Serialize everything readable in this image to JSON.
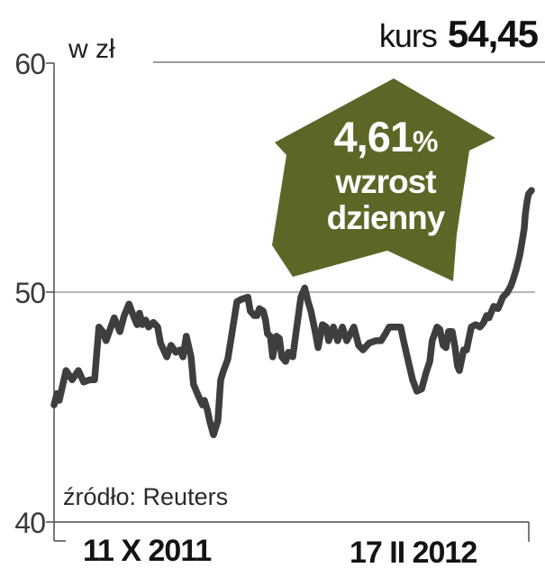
{
  "header": {
    "kurs_label": "kurs",
    "price": "54,45"
  },
  "y_axis": {
    "unit_label": "w zł",
    "ticks": [
      "60",
      "50",
      "40"
    ]
  },
  "x_axis": {
    "label_start": "11 X 2011",
    "label_end": "17 II 2012"
  },
  "source_note": "źródło: Reuters",
  "badge": {
    "percent": "4,61",
    "percent_sign": "%",
    "word1": "wzrost",
    "word2": "dzienny"
  },
  "colors": {
    "arrow": "#5e6627",
    "price_line": "#3e3e40",
    "grid": "#7a7a7a",
    "axis": "#4d4d4d",
    "background": "#ffffff"
  },
  "chart_data": {
    "type": "line",
    "title": "kurs 54,45",
    "ylabel": "w zł",
    "ylim": [
      40,
      60
    ],
    "y_ticks": [
      40,
      50,
      60
    ],
    "x_range_labels": [
      "11 X 2011",
      "17 II 2012"
    ],
    "annotation": "4,61% wzrost dzienny",
    "last_price": 54.45,
    "grid": "horizontal-only",
    "points": [
      [
        0,
        45.1
      ],
      [
        0.6,
        45.6
      ],
      [
        1.1,
        45.3
      ],
      [
        2.5,
        46.6
      ],
      [
        3.8,
        46.2
      ],
      [
        5.1,
        46.6
      ],
      [
        6.2,
        46.1
      ],
      [
        7.5,
        46.2
      ],
      [
        8.5,
        46.2
      ],
      [
        9.4,
        48.5
      ],
      [
        10.2,
        48.3
      ],
      [
        10.9,
        47.9
      ],
      [
        11.9,
        48.5
      ],
      [
        12.6,
        48.9
      ],
      [
        13.8,
        48.3
      ],
      [
        14.7,
        49.0
      ],
      [
        15.7,
        49.5
      ],
      [
        16.6,
        49.0
      ],
      [
        17.4,
        48.6
      ],
      [
        17.9,
        49.1
      ],
      [
        18.5,
        48.6
      ],
      [
        19.2,
        48.8
      ],
      [
        19.8,
        48.5
      ],
      [
        20.8,
        48.7
      ],
      [
        21.7,
        48.5
      ],
      [
        22.3,
        47.8
      ],
      [
        23.6,
        47.2
      ],
      [
        24.5,
        47.7
      ],
      [
        25.5,
        47.4
      ],
      [
        26.4,
        47.5
      ],
      [
        27.0,
        47.2
      ],
      [
        27.7,
        48.1
      ],
      [
        28.7,
        47.2
      ],
      [
        29.2,
        46.0
      ],
      [
        30.2,
        45.5
      ],
      [
        31.1,
        45.1
      ],
      [
        31.5,
        45.3
      ],
      [
        32.1,
        44.9
      ],
      [
        32.6,
        44.4
      ],
      [
        33.4,
        43.8
      ],
      [
        34.3,
        44.4
      ],
      [
        34.9,
        46.2
      ],
      [
        35.5,
        46.6
      ],
      [
        36.4,
        47.1
      ],
      [
        37.4,
        48.4
      ],
      [
        38.3,
        49.6
      ],
      [
        39.2,
        49.7
      ],
      [
        40.6,
        49.8
      ],
      [
        41.1,
        49.2
      ],
      [
        41.9,
        49.0
      ],
      [
        42.5,
        49.0
      ],
      [
        43.0,
        49.3
      ],
      [
        43.8,
        49.2
      ],
      [
        44.3,
        48.8
      ],
      [
        44.7,
        48.2
      ],
      [
        45.3,
        48.1
      ],
      [
        45.8,
        47.2
      ],
      [
        46.6,
        48.1
      ],
      [
        47.2,
        48.0
      ],
      [
        47.7,
        47.2
      ],
      [
        48.5,
        47.0
      ],
      [
        49.1,
        47.4
      ],
      [
        50.0,
        47.2
      ],
      [
        50.9,
        48.6
      ],
      [
        51.7,
        49.8
      ],
      [
        52.5,
        50.2
      ],
      [
        53.2,
        49.6
      ],
      [
        53.8,
        49.2
      ],
      [
        54.7,
        48.3
      ],
      [
        55.3,
        47.6
      ],
      [
        56.2,
        48.6
      ],
      [
        57.0,
        48.5
      ],
      [
        57.5,
        47.9
      ],
      [
        58.5,
        48.5
      ],
      [
        59.4,
        47.9
      ],
      [
        60.4,
        48.5
      ],
      [
        61.3,
        47.9
      ],
      [
        62.3,
        48.3
      ],
      [
        62.8,
        48.5
      ],
      [
        63.8,
        47.7
      ],
      [
        64.7,
        47.5
      ],
      [
        66.0,
        47.8
      ],
      [
        67.4,
        47.9
      ],
      [
        68.5,
        47.9
      ],
      [
        69.4,
        48.2
      ],
      [
        70.2,
        48.5
      ],
      [
        71.7,
        48.5
      ],
      [
        72.6,
        48.5
      ],
      [
        73.2,
        47.9
      ],
      [
        74.2,
        47.0
      ],
      [
        75.1,
        46.2
      ],
      [
        76.0,
        45.7
      ],
      [
        77.0,
        45.8
      ],
      [
        77.9,
        46.5
      ],
      [
        78.7,
        47.0
      ],
      [
        79.2,
        47.9
      ],
      [
        80.2,
        48.5
      ],
      [
        80.8,
        48.4
      ],
      [
        81.5,
        47.7
      ],
      [
        82.1,
        47.6
      ],
      [
        82.6,
        48.3
      ],
      [
        83.4,
        48.3
      ],
      [
        84.0,
        47.6
      ],
      [
        84.5,
        46.8
      ],
      [
        84.9,
        46.6
      ],
      [
        85.8,
        47.5
      ],
      [
        86.4,
        47.5
      ],
      [
        87.4,
        48.5
      ],
      [
        88.3,
        48.6
      ],
      [
        89.2,
        48.5
      ],
      [
        90.0,
        48.7
      ],
      [
        90.6,
        49.0
      ],
      [
        91.1,
        48.9
      ],
      [
        92.1,
        49.4
      ],
      [
        93.0,
        49.3
      ],
      [
        94.0,
        49.8
      ],
      [
        94.9,
        50.0
      ],
      [
        95.7,
        50.3
      ],
      [
        96.2,
        50.6
      ],
      [
        96.8,
        51.0
      ],
      [
        97.5,
        51.6
      ],
      [
        98.1,
        52.3
      ],
      [
        98.5,
        52.8
      ],
      [
        98.7,
        53.4
      ],
      [
        99.1,
        54.0
      ],
      [
        99.4,
        54.3
      ],
      [
        100,
        54.45
      ]
    ]
  }
}
